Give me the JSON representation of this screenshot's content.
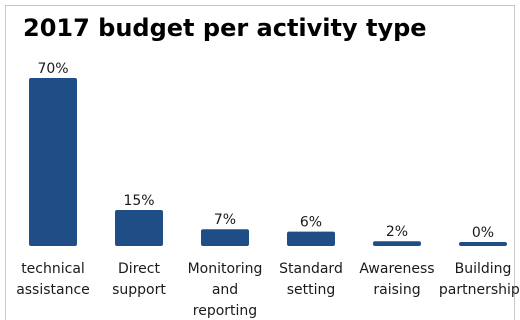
{
  "chart_data": {
    "type": "bar",
    "title": "2017 budget per activity type",
    "categories": [
      "technical assistance",
      "Direct support",
      "Monitoring and reporting",
      "Standard setting",
      "Awareness raising",
      "Building partnerships"
    ],
    "category_lines": [
      [
        "technical",
        "assistance"
      ],
      [
        "Direct",
        "support"
      ],
      [
        "Monitoring",
        "and",
        "reporting"
      ],
      [
        "Standard",
        "setting"
      ],
      [
        "Awareness",
        "raising"
      ],
      [
        "Building",
        "partnerships"
      ]
    ],
    "values": [
      70,
      15,
      7,
      6,
      2,
      0
    ],
    "data_labels": [
      "70%",
      "15%",
      "7%",
      "6%",
      "2%",
      "0%"
    ],
    "ylim": [
      0,
      70
    ],
    "grid": false,
    "legend": "none",
    "bar_color": "#1f4e87"
  }
}
